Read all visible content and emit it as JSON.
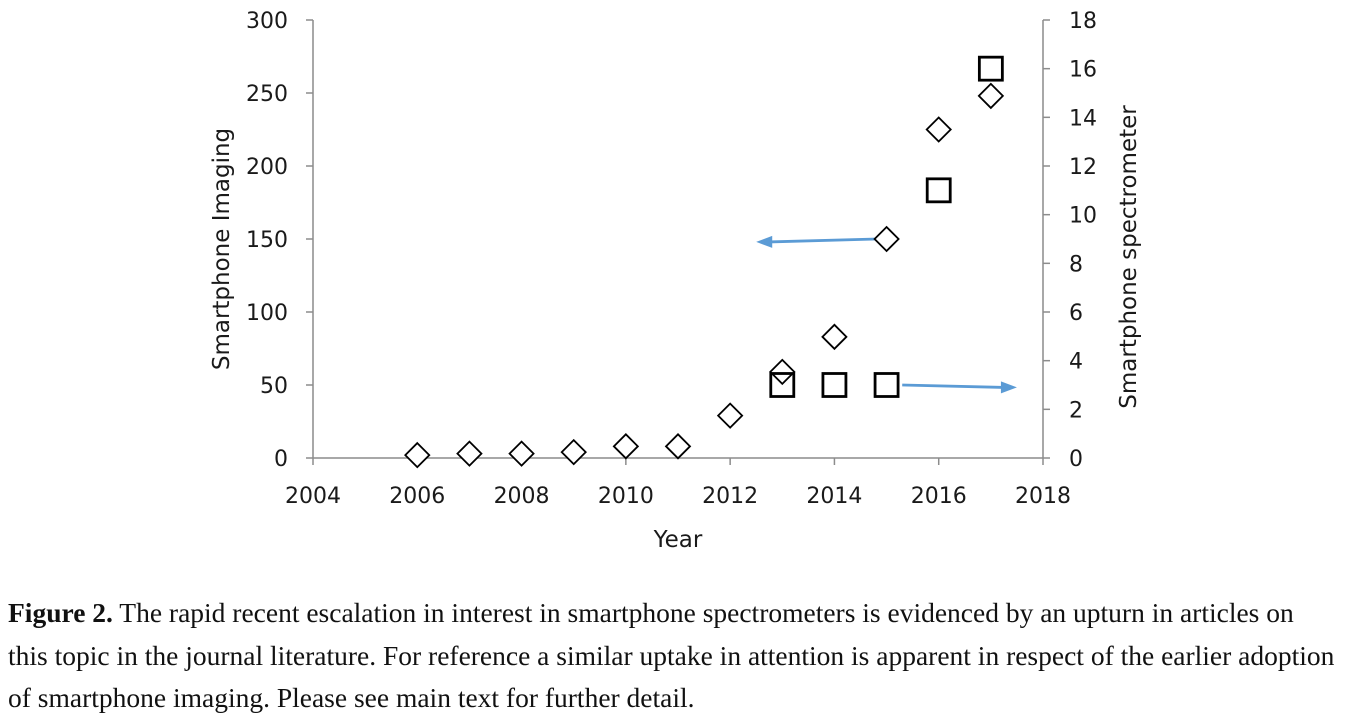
{
  "chart_data": {
    "type": "scatter",
    "xlabel": "Year",
    "ylabel_left": "Smartphone Imaging",
    "ylabel_right": "Smartphone spectrometer",
    "xlim": [
      2004,
      2018
    ],
    "ylim_left": [
      0,
      300
    ],
    "ylim_right": [
      0,
      18
    ],
    "x_ticks": [
      "2004",
      "2006",
      "2008",
      "2010",
      "2012",
      "2014",
      "2016",
      "2018"
    ],
    "y_left_ticks": [
      "0",
      "50",
      "100",
      "150",
      "200",
      "250",
      "300"
    ],
    "y_right_ticks": [
      "0",
      "2",
      "4",
      "6",
      "8",
      "10",
      "12",
      "14",
      "16",
      "18"
    ],
    "grid": false,
    "legend": "none",
    "series": [
      {
        "marker": "diamond",
        "axis": "left",
        "x": [
          2006,
          2007,
          2008,
          2009,
          2010,
          2011,
          2012,
          2013,
          2014,
          2015,
          2016,
          2017
        ],
        "y": [
          2,
          3,
          3,
          4,
          8,
          8,
          29,
          59,
          83,
          150,
          225,
          248
        ]
      },
      {
        "marker": "square",
        "axis": "right",
        "x": [
          2013,
          2014,
          2015,
          2016,
          2017
        ],
        "y": [
          3,
          3,
          3,
          11,
          16
        ]
      }
    ],
    "annotations": [
      {
        "type": "arrow",
        "direction": "left",
        "color": "#5b9bd5",
        "points_to": "left-axis",
        "from": {
          "x": 2015,
          "y_left": 150
        },
        "to": {
          "x": 2012.5,
          "y_left": 148
        }
      },
      {
        "type": "arrow",
        "direction": "right",
        "color": "#5b9bd5",
        "points_to": "right-axis",
        "from": {
          "x": 2015.3,
          "y_right": 3.0
        },
        "to": {
          "x": 2017.5,
          "y_right": 2.9
        }
      }
    ]
  },
  "caption": {
    "label": "Figure 2.",
    "text": "The rapid recent escalation in interest in smartphone spectrometers is evidenced by an upturn in articles on this topic in the journal literature. For reference a similar uptake in attention is apparent in respect of the earlier adoption of smartphone imaging. Please see main text for further detail."
  }
}
